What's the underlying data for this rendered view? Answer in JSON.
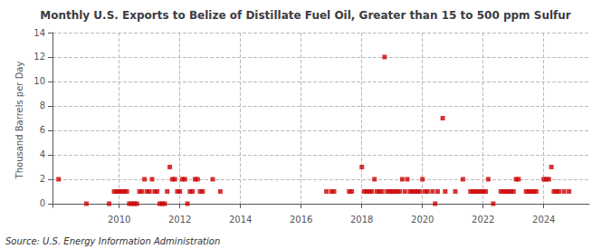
{
  "chart_data": {
    "type": "scatter",
    "title": "Monthly U.S. Exports to Belize of Distillate Fuel Oil, Greater than 15 to 500 ppm Sulfur",
    "ylabel": "Thousand Barrels per Day",
    "annotations": [
      "Source: U.S. Energy Information Administration"
    ],
    "x": [
      2008.0,
      2008.917,
      2009.667,
      2009.833,
      2009.917,
      2010.0,
      2010.083,
      2010.167,
      2010.25,
      2010.333,
      2010.417,
      2010.5,
      2010.583,
      2010.667,
      2010.75,
      2010.833,
      2010.917,
      2011.0,
      2011.083,
      2011.167,
      2011.25,
      2011.333,
      2011.417,
      2011.5,
      2011.583,
      2011.667,
      2011.75,
      2011.833,
      2011.917,
      2012.0,
      2012.083,
      2012.167,
      2012.25,
      2012.333,
      2012.417,
      2012.5,
      2012.583,
      2012.667,
      2012.75,
      2013.083,
      2013.333,
      2016.833,
      2017.0,
      2017.083,
      2017.583,
      2017.667,
      2018.0,
      2018.083,
      2018.167,
      2018.25,
      2018.333,
      2018.417,
      2018.5,
      2018.583,
      2018.667,
      2018.75,
      2018.833,
      2018.917,
      2019.0,
      2019.083,
      2019.167,
      2019.25,
      2019.333,
      2019.417,
      2019.5,
      2019.583,
      2019.667,
      2019.75,
      2019.833,
      2019.917,
      2020.0,
      2020.083,
      2020.167,
      2020.333,
      2020.417,
      2020.5,
      2020.667,
      2020.75,
      2021.083,
      2021.333,
      2021.583,
      2021.667,
      2021.75,
      2021.833,
      2021.917,
      2022.0,
      2022.083,
      2022.167,
      2022.333,
      2022.583,
      2022.667,
      2022.75,
      2022.833,
      2022.917,
      2023.0,
      2023.083,
      2023.167,
      2023.417,
      2023.5,
      2023.583,
      2023.667,
      2023.75,
      2024.0,
      2024.083,
      2024.167,
      2024.25,
      2024.333,
      2024.417,
      2024.5,
      2024.667,
      2024.833
    ],
    "values": [
      2,
      0,
      0,
      1,
      1,
      1,
      1,
      1,
      1,
      0,
      0,
      0,
      0,
      1,
      1,
      2,
      1,
      1,
      2,
      1,
      1,
      0,
      0,
      0,
      1,
      3,
      2,
      2,
      1,
      1,
      2,
      2,
      0,
      1,
      1,
      2,
      2,
      1,
      1,
      2,
      1,
      1,
      1,
      1,
      1,
      1,
      3,
      1,
      1,
      1,
      1,
      2,
      1,
      1,
      1,
      12,
      1,
      1,
      1,
      1,
      1,
      1,
      2,
      1,
      2,
      1,
      1,
      1,
      1,
      1,
      2,
      1,
      1,
      1,
      0,
      1,
      7,
      1,
      1,
      2,
      1,
      1,
      1,
      1,
      1,
      1,
      1,
      2,
      0,
      1,
      1,
      1,
      1,
      1,
      1,
      2,
      2,
      1,
      1,
      1,
      1,
      1,
      2,
      2,
      2,
      3,
      1,
      1,
      1,
      1,
      1
    ],
    "color": "#cc0000",
    "marker": "square",
    "xlim": [
      2007.8,
      2025.5
    ],
    "xticks": [
      2010,
      2012,
      2014,
      2016,
      2018,
      2020,
      2022,
      2024
    ],
    "ylim": [
      -0.3,
      14
    ],
    "yticks": [
      0,
      2,
      4,
      6,
      8,
      10,
      12,
      14
    ],
    "grid": true
  }
}
